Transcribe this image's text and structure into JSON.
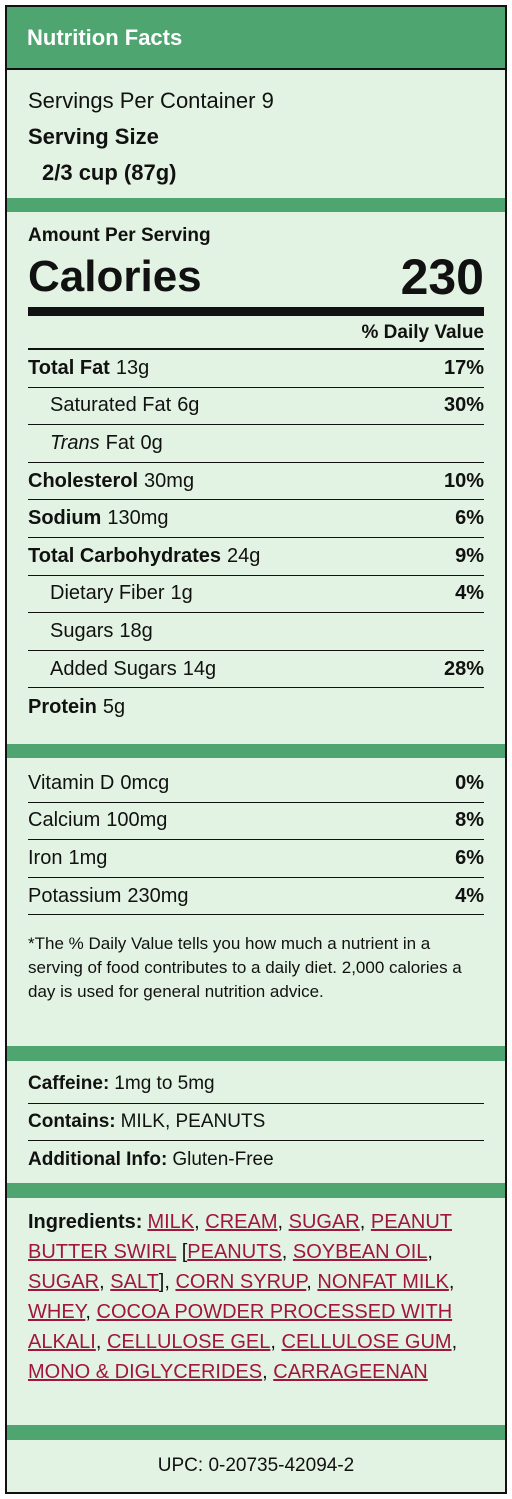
{
  "header": {
    "title": "Nutrition Facts"
  },
  "servings": {
    "per_container_label": "Servings Per Container",
    "per_container": 9,
    "size_label": "Serving Size",
    "size": "2/3 cup (87g)"
  },
  "calories": {
    "amount_label": "Amount Per Serving",
    "label": "Calories",
    "value": 230
  },
  "daily_value_header": "% Daily Value",
  "nutrients": [
    {
      "name": "Total Fat",
      "amount": "13g",
      "dv": "17%",
      "bold": true,
      "indent": false
    },
    {
      "name": "Saturated Fat",
      "amount": "6g",
      "dv": "30%",
      "bold": false,
      "indent": true
    },
    {
      "name_italic": "Trans",
      "name": "Fat",
      "amount": "0g",
      "bold": false,
      "indent": true
    },
    {
      "name": "Cholesterol",
      "amount": "30mg",
      "dv": "10%",
      "bold": true,
      "indent": false
    },
    {
      "name": "Sodium",
      "amount": "130mg",
      "dv": "6%",
      "bold": true,
      "indent": false
    },
    {
      "name": "Total Carbohydrates",
      "amount": "24g",
      "dv": "9%",
      "bold": true,
      "indent": false
    },
    {
      "name": "Dietary Fiber",
      "amount": "1g",
      "dv": "4%",
      "bold": false,
      "indent": true
    },
    {
      "name": "Sugars",
      "amount": "18g",
      "bold": false,
      "indent": true
    },
    {
      "name": "Added Sugars",
      "amount": "14g",
      "dv": "28%",
      "bold": false,
      "indent": true
    },
    {
      "name": "Protein",
      "amount": "5g",
      "bold": true,
      "indent": false
    }
  ],
  "vitamins": [
    {
      "name": "Vitamin D",
      "amount": "0mcg",
      "dv": "0%"
    },
    {
      "name": "Calcium",
      "amount": "100mg",
      "dv": "8%"
    },
    {
      "name": "Iron",
      "amount": "1mg",
      "dv": "6%"
    },
    {
      "name": "Potassium",
      "amount": "230mg",
      "dv": "4%"
    }
  ],
  "footnote": "*The % Daily Value tells you how much a nutrient in a serving of food contributes to a daily diet. 2,000 calories a day is used for general nutrition advice.",
  "info": [
    {
      "label": "Caffeine:",
      "value": "1mg to 5mg"
    },
    {
      "label": "Contains:",
      "value": "MILK, PEANUTS"
    },
    {
      "label": "Additional Info:",
      "value": "Gluten-Free"
    }
  ],
  "ingredients": {
    "label": "Ingredients:",
    "items": [
      {
        "name": "MILK"
      },
      {
        "name": "CREAM"
      },
      {
        "name": "SUGAR"
      },
      {
        "name": "PEANUT BUTTER SWIRL",
        "sub": [
          "PEANUTS",
          "SOYBEAN OIL",
          "SUGAR",
          "SALT"
        ]
      },
      {
        "name": "CORN SYRUP"
      },
      {
        "name": "NONFAT MILK"
      },
      {
        "name": "WHEY"
      },
      {
        "name": "COCOA POWDER PROCESSED WITH ALKALI"
      },
      {
        "name": "CELLULOSE GEL"
      },
      {
        "name": "CELLULOSE GUM"
      },
      {
        "name": "MONO & DIGLYCERIDES"
      },
      {
        "name": "CARRAGEENAN"
      }
    ]
  },
  "upc": "UPC: 0-20735-42094-2"
}
